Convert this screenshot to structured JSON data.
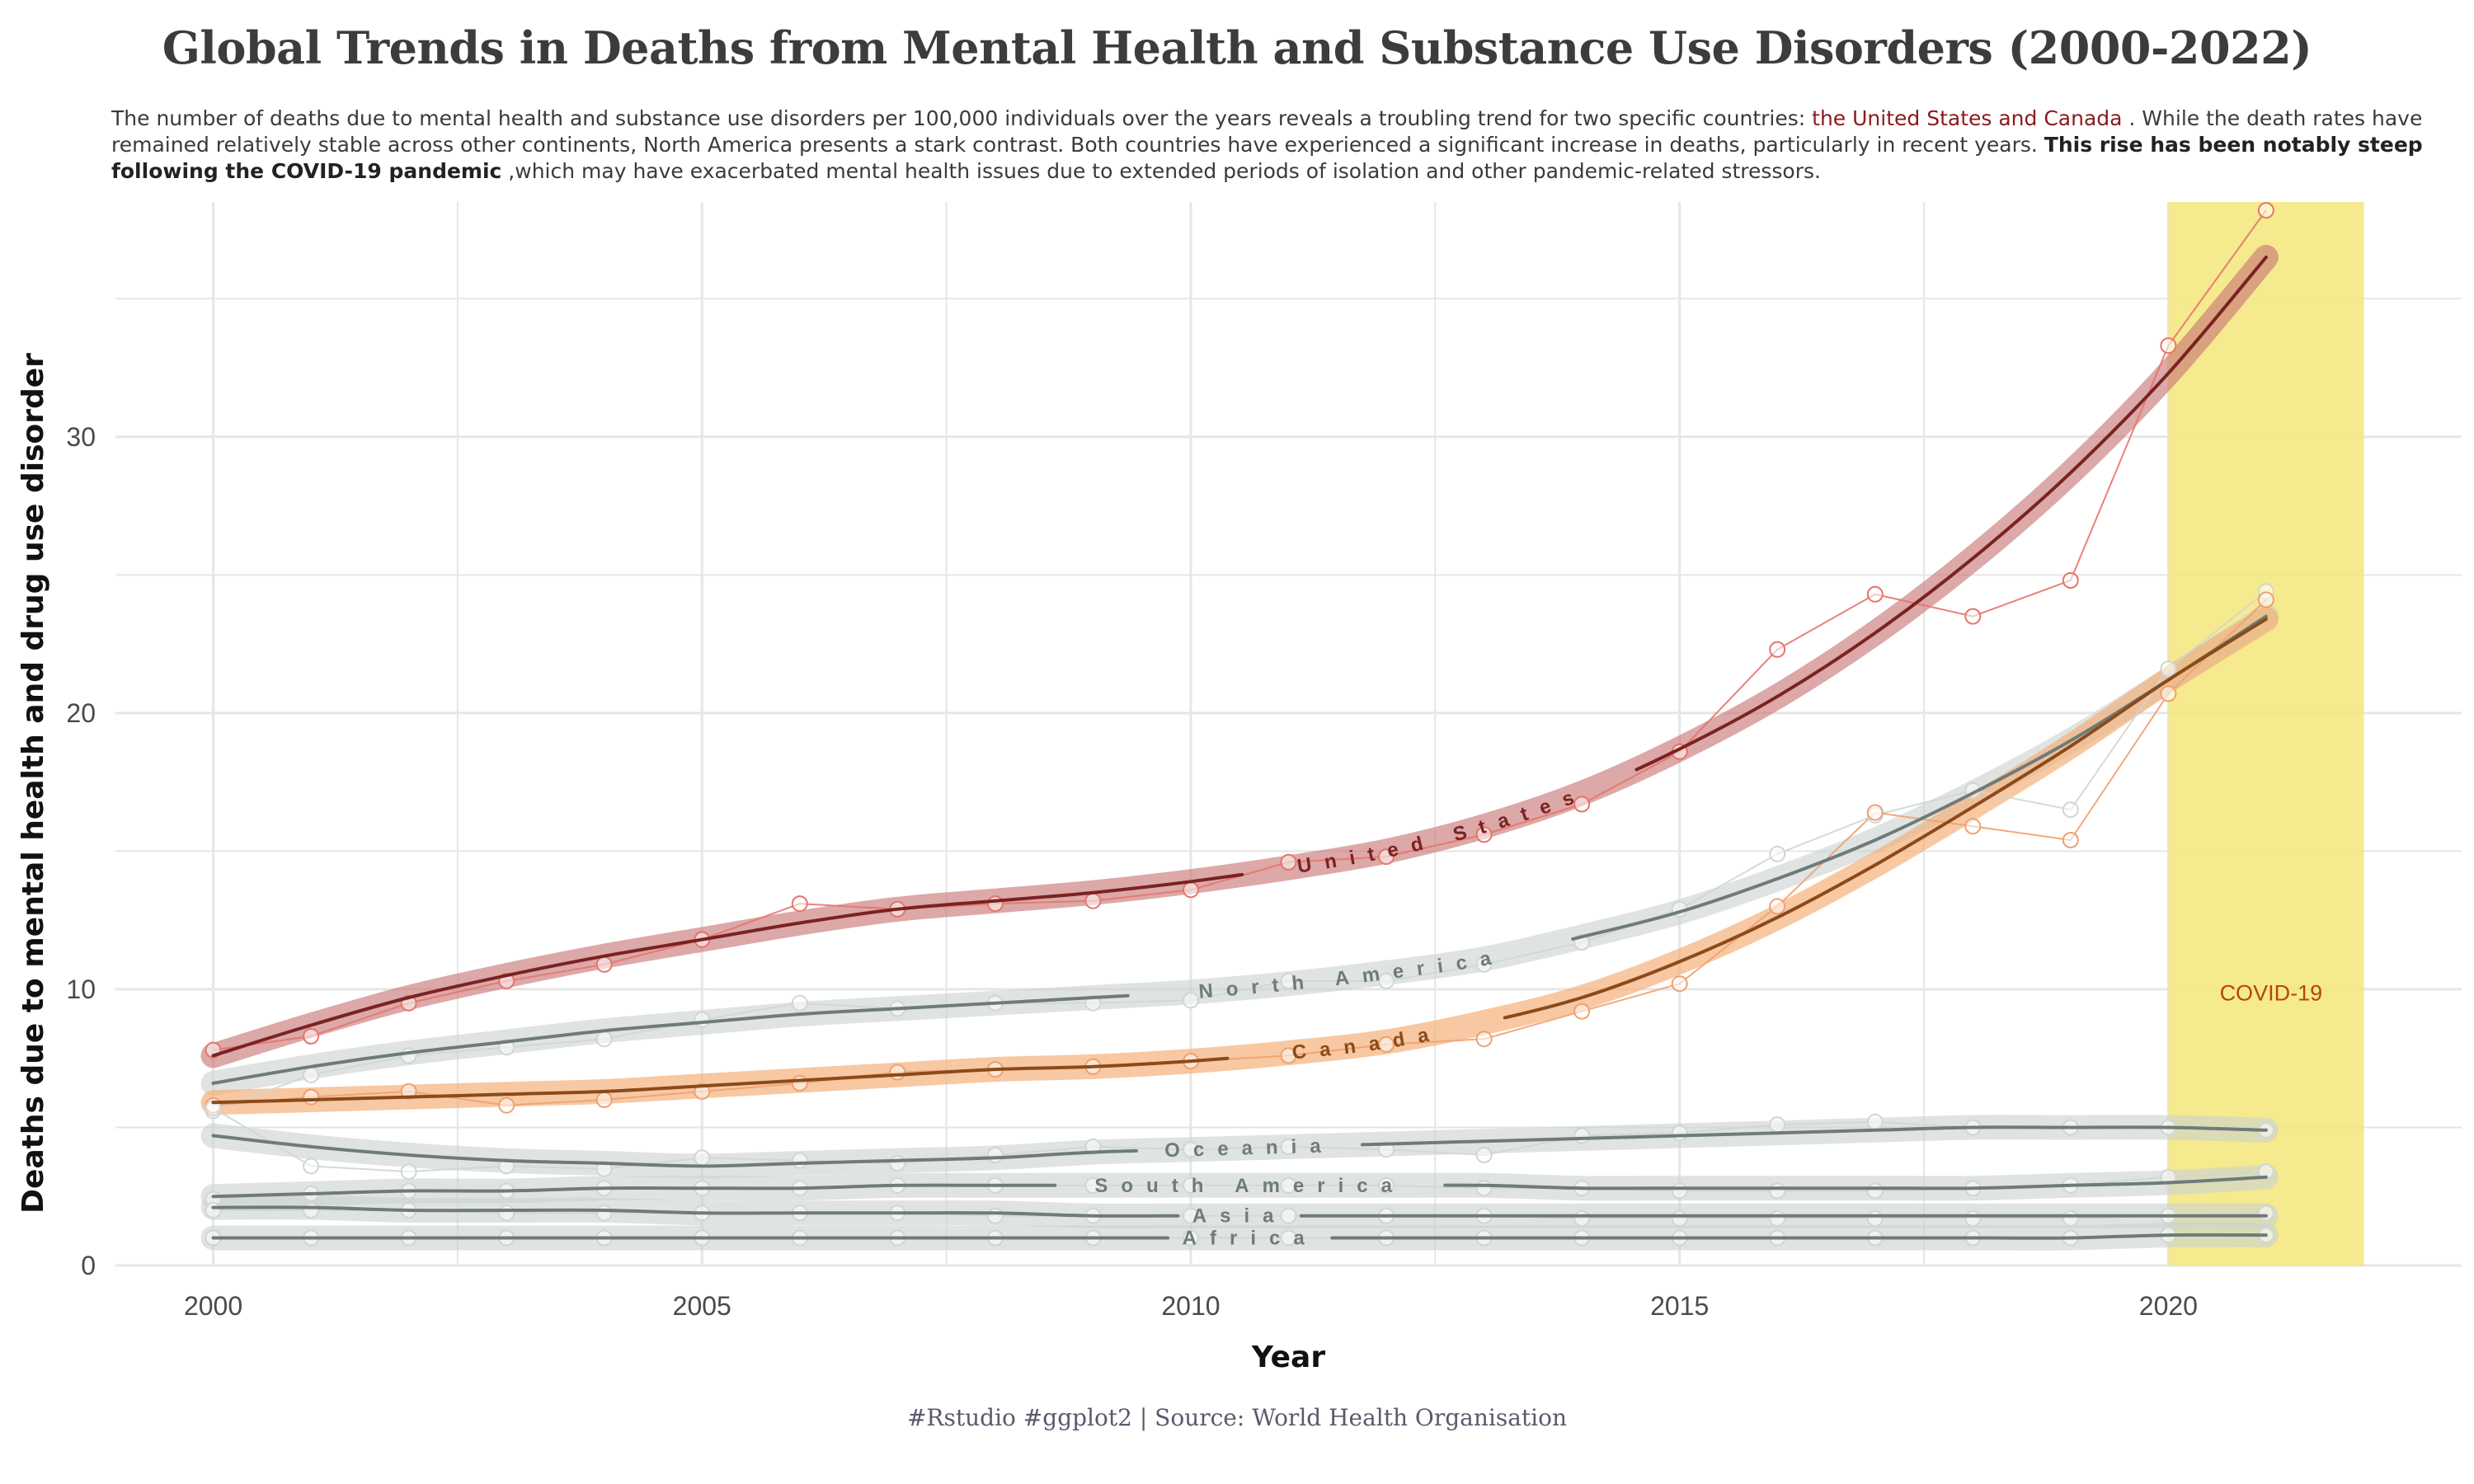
{
  "title": "Global Trends in Deaths from Mental Health and Substance Use Disorders (2000-2022)",
  "subtitle": {
    "p1": "The number of deaths due to mental health and substance use disorders per 100,000 individuals over the years reveals a troubling trend for two specific countries: ",
    "highlight": "the United States and Canada",
    "p2": " . While the death rates have remained relatively stable across other continents, North America presents a stark contrast. Both countries have experienced a significant increase in deaths, particularly in recent years. ",
    "bold": "This rise has been notably steep following the COVID-19 pandemic",
    "p3": " ,which may have exacerbated mental health issues due to extended periods of isolation and other pandemic-related stressors."
  },
  "caption": "#Rstudio #ggplot2 | Source: World Health Organisation",
  "colors": {
    "us_line": "#7a2222",
    "us_band": "#c97a7a",
    "us_points": "#e8736a",
    "canada_line": "#8b4a1a",
    "canada_band": "#f4b07a",
    "canada_points": "#f0a070",
    "grey_line": "#6f7b7b",
    "grey_band": "#c9d2d0",
    "grey_points": "#cfd6d4",
    "covid_band": "#f5e67a",
    "covid_text": "#b5470a",
    "grid": "#e6e6e6"
  },
  "chart_data": {
    "type": "line",
    "xlabel": "Year",
    "ylabel": "Deaths due to mental health and drug use disorder",
    "xlim": [
      1999,
      2023
    ],
    "ylim": [
      0,
      38.5
    ],
    "x_ticks": [
      2000,
      2005,
      2010,
      2015,
      2020
    ],
    "y_ticks": [
      0,
      10,
      20,
      30
    ],
    "grid": true,
    "annotation": {
      "label": "COVID-19",
      "x_from": 2020,
      "x_to": 2022
    },
    "x": [
      2000,
      2001,
      2002,
      2003,
      2004,
      2005,
      2006,
      2007,
      2008,
      2009,
      2010,
      2011,
      2012,
      2013,
      2014,
      2015,
      2016,
      2017,
      2018,
      2019,
      2020,
      2021
    ],
    "series": [
      {
        "name": "United States",
        "values": [
          7.8,
          8.3,
          9.5,
          10.3,
          10.9,
          11.8,
          13.1,
          12.9,
          13.1,
          13.2,
          13.6,
          14.6,
          14.8,
          15.6,
          16.7,
          18.6,
          22.3,
          24.3,
          23.5,
          24.8,
          33.3,
          38.2
        ],
        "smooth": [
          7.6,
          8.7,
          9.7,
          10.5,
          11.2,
          11.8,
          12.4,
          12.9,
          13.2,
          13.5,
          13.9,
          14.4,
          15.0,
          15.9,
          17.1,
          18.7,
          20.6,
          22.9,
          25.6,
          28.7,
          32.3,
          36.5
        ]
      },
      {
        "name": "North America",
        "values": [
          5.6,
          6.9,
          7.6,
          7.9,
          8.2,
          8.9,
          9.5,
          9.3,
          9.5,
          9.5,
          9.6,
          10.3,
          10.3,
          10.9,
          11.7,
          12.9,
          14.9,
          16.3,
          17.2,
          16.5,
          21.6,
          24.4
        ],
        "smooth": [
          6.6,
          7.2,
          7.7,
          8.1,
          8.5,
          8.8,
          9.1,
          9.3,
          9.5,
          9.7,
          9.9,
          10.2,
          10.6,
          11.1,
          11.9,
          12.8,
          14.0,
          15.4,
          17.1,
          19.0,
          21.2,
          23.5
        ]
      },
      {
        "name": "Canada",
        "values": [
          5.8,
          6.1,
          6.3,
          5.8,
          6.0,
          6.3,
          6.6,
          7.0,
          7.1,
          7.2,
          7.4,
          7.6,
          8.0,
          8.2,
          9.2,
          10.2,
          13.0,
          16.4,
          15.9,
          15.4,
          20.7,
          24.1
        ],
        "smooth": [
          5.9,
          6.0,
          6.1,
          6.2,
          6.3,
          6.5,
          6.7,
          6.9,
          7.1,
          7.2,
          7.4,
          7.7,
          8.1,
          8.8,
          9.7,
          11.0,
          12.6,
          14.5,
          16.6,
          18.8,
          21.2,
          23.4
        ]
      },
      {
        "name": "Oceania",
        "values": [
          5.7,
          3.6,
          3.4,
          3.6,
          3.5,
          3.9,
          3.8,
          3.7,
          4.0,
          4.3,
          4.2,
          4.3,
          4.2,
          4.0,
          4.7,
          4.8,
          5.1,
          5.2,
          5.0,
          5.0,
          5.0,
          4.9
        ],
        "smooth": [
          4.7,
          4.3,
          4.0,
          3.8,
          3.7,
          3.6,
          3.7,
          3.8,
          3.9,
          4.1,
          4.2,
          4.3,
          4.4,
          4.5,
          4.6,
          4.7,
          4.8,
          4.9,
          5.0,
          5.0,
          5.0,
          4.9
        ]
      },
      {
        "name": "South America",
        "values": [
          2.4,
          2.6,
          2.7,
          2.7,
          2.8,
          2.8,
          2.8,
          2.9,
          2.9,
          2.9,
          2.9,
          2.9,
          2.9,
          2.8,
          2.8,
          2.7,
          2.7,
          2.7,
          2.8,
          2.9,
          3.2,
          3.4
        ],
        "smooth": [
          2.5,
          2.6,
          2.7,
          2.7,
          2.8,
          2.8,
          2.8,
          2.9,
          2.9,
          2.9,
          2.9,
          2.9,
          2.9,
          2.9,
          2.8,
          2.8,
          2.8,
          2.8,
          2.8,
          2.9,
          3.0,
          3.2
        ]
      },
      {
        "name": "Asia",
        "values": [
          2.0,
          2.0,
          2.0,
          1.9,
          1.9,
          1.9,
          1.9,
          1.9,
          1.8,
          1.8,
          1.8,
          1.8,
          1.8,
          1.8,
          1.7,
          1.7,
          1.7,
          1.7,
          1.7,
          1.7,
          1.8,
          1.9
        ],
        "smooth": [
          2.1,
          2.1,
          2.0,
          2.0,
          2.0,
          1.9,
          1.9,
          1.9,
          1.9,
          1.8,
          1.8,
          1.8,
          1.8,
          1.8,
          1.8,
          1.8,
          1.8,
          1.8,
          1.8,
          1.8,
          1.8,
          1.8
        ]
      },
      {
        "name": "Africa",
        "values": [
          1.0,
          1.0,
          1.0,
          1.0,
          1.0,
          1.0,
          1.0,
          1.0,
          1.0,
          1.0,
          1.0,
          1.0,
          1.0,
          1.0,
          1.0,
          1.0,
          1.0,
          1.0,
          1.0,
          1.0,
          1.1,
          1.1
        ],
        "smooth": [
          1.0,
          1.0,
          1.0,
          1.0,
          1.0,
          1.0,
          1.0,
          1.0,
          1.0,
          1.0,
          1.0,
          1.0,
          1.0,
          1.0,
          1.0,
          1.0,
          1.0,
          1.0,
          1.0,
          1.0,
          1.1,
          1.1
        ]
      }
    ]
  }
}
